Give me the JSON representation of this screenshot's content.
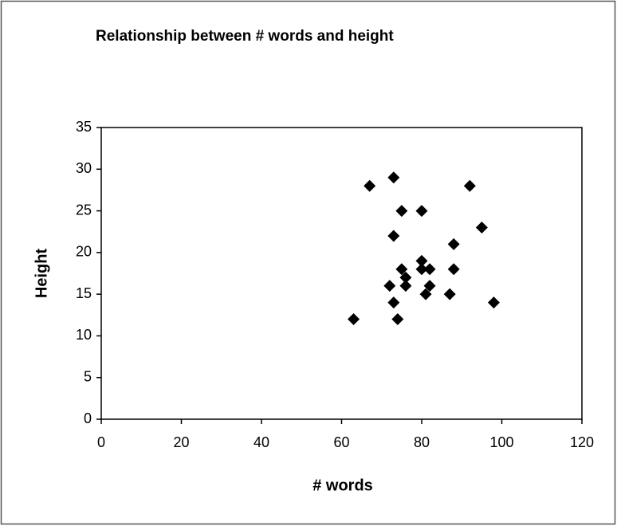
{
  "chart_data": {
    "type": "scatter",
    "title": "Relationship between # words and height",
    "x_label": "# words",
    "y_label": "Height",
    "color": "#000000",
    "grid": false,
    "xlim": [
      0,
      120
    ],
    "xticks": [
      0,
      20,
      40,
      60,
      80,
      100,
      120
    ],
    "ylim": [
      0,
      35
    ],
    "yticks": [
      0,
      5,
      10,
      15,
      20,
      25,
      30,
      35
    ],
    "x": [
      67,
      73,
      92,
      75,
      80,
      95,
      73,
      88,
      80,
      75,
      80,
      82,
      88,
      76,
      72,
      76,
      82,
      81,
      87,
      73,
      98,
      63,
      74
    ],
    "values": [
      28,
      29,
      28,
      25,
      25,
      23,
      22,
      21,
      19,
      18,
      18,
      18,
      18,
      17,
      16,
      16,
      16,
      15,
      15,
      14,
      14,
      12,
      12
    ]
  }
}
